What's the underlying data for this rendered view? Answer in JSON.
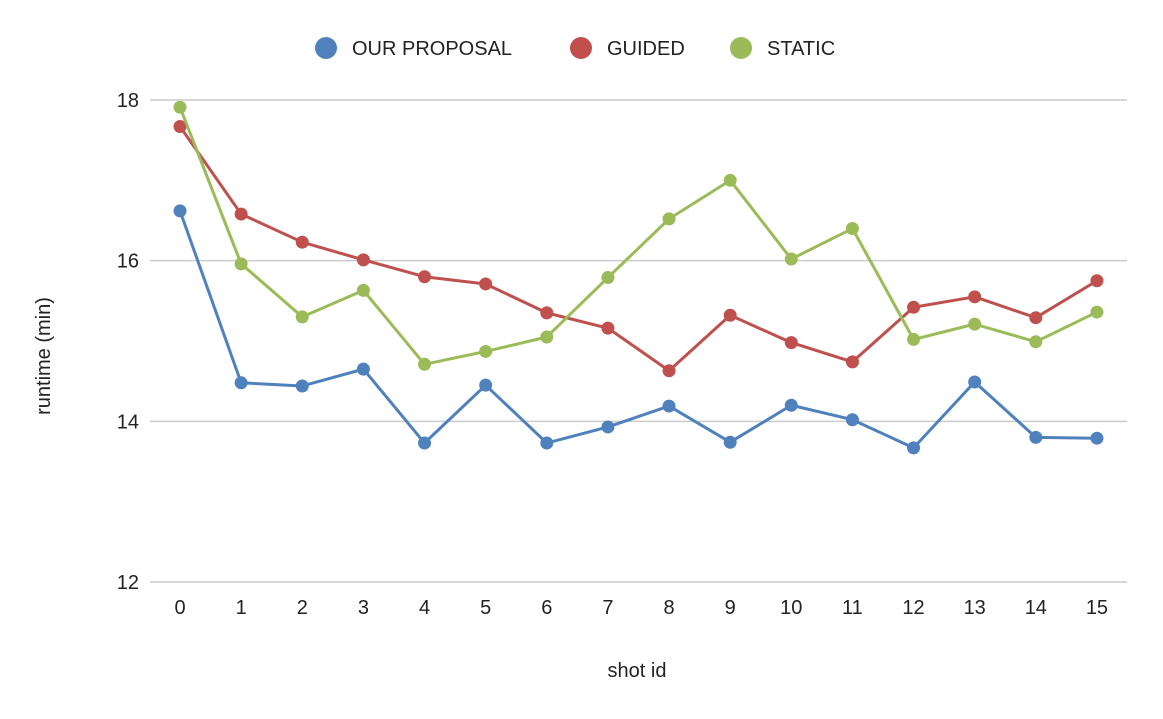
{
  "chart_data": {
    "type": "line",
    "title": "",
    "xlabel": "shot id",
    "ylabel": "runtime (min)",
    "ylim": [
      12,
      18
    ],
    "yticks": [
      "12",
      "14",
      "16",
      "18"
    ],
    "grid": true,
    "legend_position": "top-center",
    "categories": [
      "0",
      "1",
      "2",
      "3",
      "4",
      "5",
      "6",
      "7",
      "8",
      "9",
      "10",
      "11",
      "12",
      "13",
      "14",
      "15"
    ],
    "series": [
      {
        "name": "OUR PROPOSAL",
        "color": "#4f81bd",
        "values": [
          16.62,
          14.48,
          14.44,
          14.65,
          13.73,
          14.45,
          13.73,
          13.93,
          14.19,
          13.74,
          14.2,
          14.02,
          13.67,
          14.49,
          13.8,
          13.79
        ]
      },
      {
        "name": "GUIDED",
        "color": "#c0504d",
        "values": [
          17.67,
          16.58,
          16.23,
          16.01,
          15.8,
          15.71,
          15.35,
          15.16,
          14.63,
          15.32,
          14.98,
          14.74,
          15.42,
          15.55,
          15.29,
          15.75
        ]
      },
      {
        "name": "STATIC",
        "color": "#9bbb59",
        "values": [
          17.91,
          15.96,
          15.3,
          15.63,
          14.71,
          14.87,
          15.05,
          15.79,
          16.52,
          17.0,
          16.02,
          16.4,
          15.02,
          15.21,
          14.99,
          15.36
        ]
      }
    ]
  }
}
